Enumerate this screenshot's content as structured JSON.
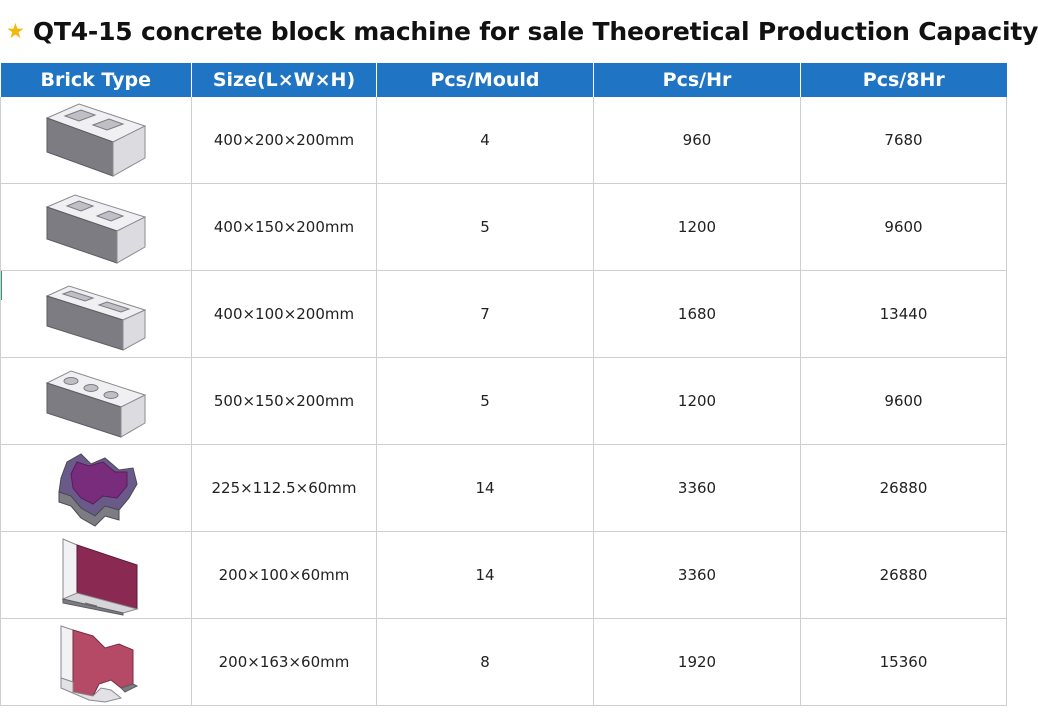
{
  "title": {
    "star": "★",
    "text": "QT4-15 concrete block machine for sale Theoretical Production Capacity"
  },
  "table": {
    "headers": [
      "Brick Type",
      "Size(L×W×H)",
      "Pcs/Mould",
      "Pcs/Hr",
      "Pcs/8Hr"
    ],
    "rows": [
      {
        "icon": "hollow-block-2-hole-icon",
        "size": "400×200×200mm",
        "pcs_mould": "4",
        "pcs_hr": "960",
        "pcs_8hr": "7680"
      },
      {
        "icon": "hollow-block-2-hole-narrow-icon",
        "size": "400×150×200mm",
        "pcs_mould": "5",
        "pcs_hr": "1200",
        "pcs_8hr": "9600"
      },
      {
        "icon": "hollow-block-slot-icon",
        "size": "400×100×200mm",
        "pcs_mould": "7",
        "pcs_hr": "1680",
        "pcs_8hr": "13440"
      },
      {
        "icon": "hollow-block-3-hole-icon",
        "size": "500×150×200mm",
        "pcs_mould": "5",
        "pcs_hr": "1200",
        "pcs_8hr": "9600"
      },
      {
        "icon": "zigzag-paver-icon",
        "size": "225×112.5×60mm",
        "pcs_mould": "14",
        "pcs_hr": "3360",
        "pcs_8hr": "26880"
      },
      {
        "icon": "rectangular-paver-icon",
        "size": "200×100×60mm",
        "pcs_mould": "14",
        "pcs_hr": "3360",
        "pcs_8hr": "26880"
      },
      {
        "icon": "i-shape-paver-icon",
        "size": "200×163×60mm",
        "pcs_mould": "8",
        "pcs_hr": "1920",
        "pcs_8hr": "15360"
      }
    ]
  },
  "colors": {
    "header_bg": "#1f74c4",
    "star": "#f2b90d",
    "grid": "#cfcfcf"
  }
}
